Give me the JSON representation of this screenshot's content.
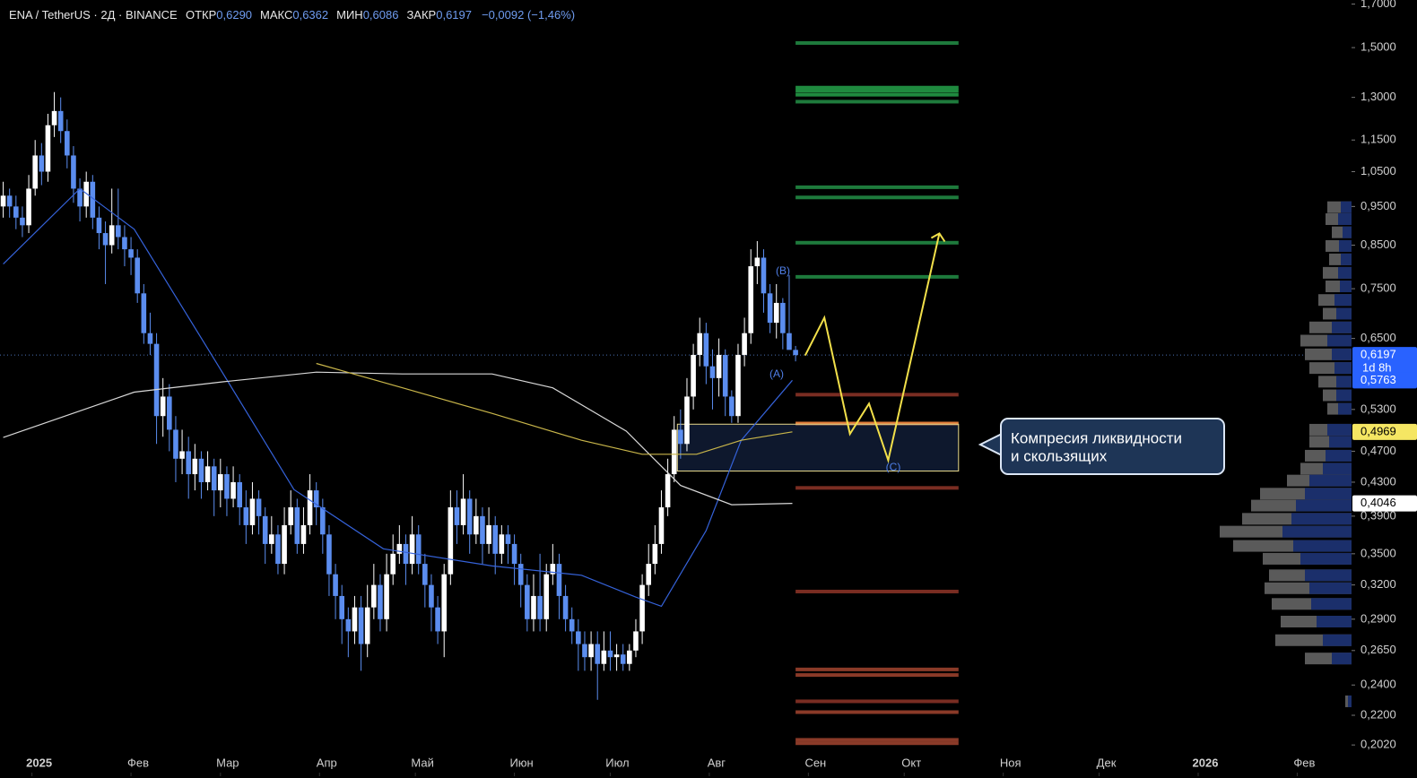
{
  "header": {
    "symbol": "ENA / TetherUS · 2Д · BINANCE",
    "ohlc": [
      {
        "label": "ОТКР",
        "value": "0,6290"
      },
      {
        "label": "МАКС",
        "value": "0,6362"
      },
      {
        "label": "МИН",
        "value": "0,6086"
      },
      {
        "label": "ЗАКР",
        "value": "0,6197"
      }
    ],
    "change": "−0,0092 (−1,46%)"
  },
  "chart_data": {
    "type": "candlestick",
    "log_scale": true,
    "up_color": "#ffffff",
    "down_color": "#5b8def",
    "xlim": [
      -10,
      413
    ],
    "ylim": [
      0.2,
      1.72
    ],
    "xticks": [
      {
        "value": 0,
        "label": "2025"
      },
      {
        "value": 31,
        "label": "Фев"
      },
      {
        "value": 59,
        "label": "Мар"
      },
      {
        "value": 90,
        "label": "Апр"
      },
      {
        "value": 120,
        "label": "Май"
      },
      {
        "value": 151,
        "label": "Июн"
      },
      {
        "value": 181,
        "label": "Июл"
      },
      {
        "value": 212,
        "label": "Авг"
      },
      {
        "value": 243,
        "label": "Сен"
      },
      {
        "value": 273,
        "label": "Окт"
      },
      {
        "value": 304,
        "label": "Ноя"
      },
      {
        "value": 334,
        "label": "Дек"
      },
      {
        "value": 365,
        "label": "2026"
      },
      {
        "value": 396,
        "label": "Фев"
      }
    ],
    "yticks": [
      {
        "value": 1.7,
        "label": "1,7000"
      },
      {
        "value": 1.5,
        "label": "1,5000"
      },
      {
        "value": 1.3,
        "label": "1,3000"
      },
      {
        "value": 1.15,
        "label": "1,1500"
      },
      {
        "value": 1.05,
        "label": "1,0500"
      },
      {
        "value": 0.95,
        "label": "0,9500"
      },
      {
        "value": 0.85,
        "label": "0,8500"
      },
      {
        "value": 0.75,
        "label": "0,7500"
      },
      {
        "value": 0.65,
        "label": "0,6500"
      },
      {
        "value": 0.53,
        "label": "0,5300"
      },
      {
        "value": 0.47,
        "label": "0,4700"
      },
      {
        "value": 0.43,
        "label": "0,4300"
      },
      {
        "value": 0.39,
        "label": "0,3900"
      },
      {
        "value": 0.35,
        "label": "0,3500"
      },
      {
        "value": 0.32,
        "label": "0,3200"
      },
      {
        "value": 0.29,
        "label": "0,2900"
      },
      {
        "value": 0.265,
        "label": "0,2650"
      },
      {
        "value": 0.24,
        "label": "0,2400"
      },
      {
        "value": 0.22,
        "label": "0,2200"
      },
      {
        "value": 0.202,
        "label": "0,2020"
      }
    ],
    "candles": [
      [
        0.95,
        1.02,
        0.92,
        0.98
      ],
      [
        0.98,
        1.0,
        0.92,
        0.95
      ],
      [
        0.95,
        0.98,
        0.89,
        0.92
      ],
      [
        0.92,
        0.95,
        0.87,
        0.9
      ],
      [
        0.9,
        1.04,
        0.88,
        1.0
      ],
      [
        1.0,
        1.15,
        0.98,
        1.1
      ],
      [
        1.1,
        1.14,
        1.01,
        1.05
      ],
      [
        1.05,
        1.24,
        1.02,
        1.2
      ],
      [
        1.2,
        1.32,
        1.16,
        1.25
      ],
      [
        1.25,
        1.3,
        1.14,
        1.18
      ],
      [
        1.18,
        1.22,
        1.06,
        1.1
      ],
      [
        1.1,
        1.13,
        0.96,
        1.0
      ],
      [
        1.0,
        1.03,
        0.91,
        0.95
      ],
      [
        0.95,
        1.05,
        0.92,
        1.02
      ],
      [
        1.02,
        1.04,
        0.89,
        0.92
      ],
      [
        0.92,
        0.95,
        0.84,
        0.88
      ],
      [
        0.88,
        0.91,
        0.76,
        0.85
      ],
      [
        0.85,
        1.0,
        0.83,
        0.9
      ],
      [
        0.9,
        1.0,
        0.84,
        0.87
      ],
      [
        0.87,
        0.9,
        0.8,
        0.84
      ],
      [
        0.84,
        0.87,
        0.78,
        0.82
      ],
      [
        0.82,
        0.84,
        0.72,
        0.74
      ],
      [
        0.74,
        0.76,
        0.64,
        0.66
      ],
      [
        0.66,
        0.7,
        0.62,
        0.64
      ],
      [
        0.64,
        0.66,
        0.48,
        0.52
      ],
      [
        0.52,
        0.58,
        0.49,
        0.55
      ],
      [
        0.55,
        0.57,
        0.47,
        0.5
      ],
      [
        0.5,
        0.52,
        0.43,
        0.46
      ],
      [
        0.46,
        0.5,
        0.44,
        0.47
      ],
      [
        0.47,
        0.49,
        0.41,
        0.44
      ],
      [
        0.44,
        0.48,
        0.42,
        0.46
      ],
      [
        0.46,
        0.47,
        0.41,
        0.43
      ],
      [
        0.43,
        0.47,
        0.42,
        0.45
      ],
      [
        0.45,
        0.46,
        0.39,
        0.42
      ],
      [
        0.42,
        0.46,
        0.4,
        0.44
      ],
      [
        0.44,
        0.45,
        0.39,
        0.41
      ],
      [
        0.41,
        0.45,
        0.4,
        0.43
      ],
      [
        0.43,
        0.44,
        0.38,
        0.4
      ],
      [
        0.4,
        0.42,
        0.36,
        0.38
      ],
      [
        0.38,
        0.43,
        0.37,
        0.41
      ],
      [
        0.41,
        0.42,
        0.37,
        0.39
      ],
      [
        0.39,
        0.4,
        0.34,
        0.36
      ],
      [
        0.36,
        0.39,
        0.35,
        0.37
      ],
      [
        0.37,
        0.38,
        0.33,
        0.34
      ],
      [
        0.34,
        0.4,
        0.33,
        0.38
      ],
      [
        0.38,
        0.42,
        0.37,
        0.4
      ],
      [
        0.4,
        0.41,
        0.35,
        0.36
      ],
      [
        0.36,
        0.4,
        0.35,
        0.38
      ],
      [
        0.38,
        0.44,
        0.37,
        0.42
      ],
      [
        0.42,
        0.43,
        0.38,
        0.4
      ],
      [
        0.4,
        0.41,
        0.35,
        0.37
      ],
      [
        0.37,
        0.38,
        0.31,
        0.33
      ],
      [
        0.33,
        0.34,
        0.29,
        0.31
      ],
      [
        0.31,
        0.32,
        0.27,
        0.29
      ],
      [
        0.29,
        0.3,
        0.26,
        0.28
      ],
      [
        0.28,
        0.31,
        0.27,
        0.3
      ],
      [
        0.3,
        0.31,
        0.25,
        0.27
      ],
      [
        0.27,
        0.32,
        0.26,
        0.3
      ],
      [
        0.3,
        0.34,
        0.29,
        0.32
      ],
      [
        0.32,
        0.33,
        0.28,
        0.29
      ],
      [
        0.29,
        0.35,
        0.28,
        0.33
      ],
      [
        0.33,
        0.37,
        0.32,
        0.35
      ],
      [
        0.35,
        0.38,
        0.34,
        0.36
      ],
      [
        0.36,
        0.37,
        0.32,
        0.34
      ],
      [
        0.34,
        0.39,
        0.33,
        0.37
      ],
      [
        0.37,
        0.38,
        0.33,
        0.34
      ],
      [
        0.34,
        0.35,
        0.3,
        0.32
      ],
      [
        0.32,
        0.33,
        0.28,
        0.3
      ],
      [
        0.3,
        0.31,
        0.27,
        0.28
      ],
      [
        0.28,
        0.34,
        0.26,
        0.33
      ],
      [
        0.33,
        0.42,
        0.32,
        0.4
      ],
      [
        0.4,
        0.42,
        0.36,
        0.38
      ],
      [
        0.38,
        0.44,
        0.37,
        0.41
      ],
      [
        0.41,
        0.42,
        0.35,
        0.37
      ],
      [
        0.37,
        0.41,
        0.36,
        0.39
      ],
      [
        0.39,
        0.4,
        0.34,
        0.36
      ],
      [
        0.36,
        0.4,
        0.35,
        0.38
      ],
      [
        0.38,
        0.39,
        0.33,
        0.35
      ],
      [
        0.35,
        0.38,
        0.34,
        0.37
      ],
      [
        0.37,
        0.38,
        0.34,
        0.36
      ],
      [
        0.36,
        0.37,
        0.32,
        0.34
      ],
      [
        0.34,
        0.35,
        0.3,
        0.32
      ],
      [
        0.32,
        0.33,
        0.28,
        0.29
      ],
      [
        0.29,
        0.33,
        0.28,
        0.31
      ],
      [
        0.31,
        0.35,
        0.28,
        0.29
      ],
      [
        0.29,
        0.34,
        0.28,
        0.33
      ],
      [
        0.33,
        0.36,
        0.32,
        0.34
      ],
      [
        0.34,
        0.35,
        0.29,
        0.31
      ],
      [
        0.31,
        0.32,
        0.28,
        0.29
      ],
      [
        0.29,
        0.3,
        0.27,
        0.28
      ],
      [
        0.28,
        0.29,
        0.25,
        0.27
      ],
      [
        0.27,
        0.28,
        0.25,
        0.26
      ],
      [
        0.26,
        0.28,
        0.25,
        0.27
      ],
      [
        0.27,
        0.28,
        0.23,
        0.255
      ],
      [
        0.255,
        0.28,
        0.25,
        0.265
      ],
      [
        0.265,
        0.28,
        0.25,
        0.26
      ],
      [
        0.26,
        0.27,
        0.25,
        0.262
      ],
      [
        0.262,
        0.27,
        0.25,
        0.255
      ],
      [
        0.255,
        0.27,
        0.25,
        0.265
      ],
      [
        0.265,
        0.29,
        0.26,
        0.28
      ],
      [
        0.28,
        0.33,
        0.27,
        0.32
      ],
      [
        0.32,
        0.36,
        0.31,
        0.34
      ],
      [
        0.34,
        0.38,
        0.33,
        0.36
      ],
      [
        0.36,
        0.42,
        0.35,
        0.4
      ],
      [
        0.4,
        0.46,
        0.39,
        0.44
      ],
      [
        0.44,
        0.52,
        0.43,
        0.5
      ],
      [
        0.5,
        0.53,
        0.46,
        0.48
      ],
      [
        0.48,
        0.58,
        0.47,
        0.55
      ],
      [
        0.55,
        0.64,
        0.53,
        0.62
      ],
      [
        0.62,
        0.69,
        0.6,
        0.66
      ],
      [
        0.66,
        0.68,
        0.57,
        0.6
      ],
      [
        0.6,
        0.63,
        0.53,
        0.58
      ],
      [
        0.58,
        0.65,
        0.55,
        0.62
      ],
      [
        0.62,
        0.63,
        0.52,
        0.55
      ],
      [
        0.55,
        0.56,
        0.51,
        0.52
      ],
      [
        0.52,
        0.64,
        0.51,
        0.62
      ],
      [
        0.62,
        0.69,
        0.6,
        0.66
      ],
      [
        0.66,
        0.84,
        0.64,
        0.8
      ],
      [
        0.8,
        0.86,
        0.76,
        0.82
      ],
      [
        0.82,
        0.84,
        0.7,
        0.74
      ],
      [
        0.74,
        0.76,
        0.66,
        0.68
      ],
      [
        0.68,
        0.76,
        0.65,
        0.72
      ],
      [
        0.72,
        0.73,
        0.63,
        0.66
      ],
      [
        0.66,
        0.78,
        0.64,
        0.629
      ],
      [
        0.629,
        0.6362,
        0.6086,
        0.6197
      ]
    ],
    "lines": [
      {
        "color": "#3562d9",
        "x": [
          -9,
          15,
          32,
          57,
          82,
          110,
          144,
          172,
          189,
          197,
          211,
          222,
          238
        ],
        "values": [
          0.805,
          1.0,
          0.89,
          0.613,
          0.421,
          0.355,
          0.338,
          0.329,
          0.309,
          0.301,
          0.374,
          0.485,
          0.5763
        ]
      },
      {
        "color": "#d8d8d8",
        "x": [
          -9,
          32,
          60,
          89,
          116,
          144,
          163,
          186,
          203,
          219,
          238
        ],
        "values": [
          0.489,
          0.557,
          0.574,
          0.59,
          0.587,
          0.587,
          0.564,
          0.498,
          0.426,
          0.403,
          0.4046
        ]
      },
      {
        "color": "#c9b64a",
        "x": [
          89,
          116,
          144,
          172,
          191,
          208,
          222,
          238
        ],
        "values": [
          0.605,
          0.564,
          0.524,
          0.485,
          0.466,
          0.466,
          0.485,
          0.4969
        ]
      },
      {
        "color": "#f2e04a",
        "x": [
          242,
          248,
          256,
          262,
          268,
          284
        ],
        "values": [
          0.619,
          0.69,
          0.494,
          0.539,
          0.458,
          0.879
        ]
      }
    ],
    "levels": {
      "x": [
        239,
        290
      ],
      "items": [
        {
          "value": 1.52,
          "color": "#1e7a3c"
        },
        {
          "value": 1.337,
          "color": "#1f8a3f"
        },
        {
          "value": 1.325,
          "color": "#1f8a3f"
        },
        {
          "value": 1.31,
          "color": "#1f8a3f"
        },
        {
          "value": 1.284,
          "color": "#1e7a3c"
        },
        {
          "value": 1.004,
          "color": "#1e7a3c"
        },
        {
          "value": 0.975,
          "color": "#1e7a3c"
        },
        {
          "value": 0.856,
          "color": "#1e7a3c"
        },
        {
          "value": 0.776,
          "color": "#1e7a3c"
        },
        {
          "value": 0.553,
          "color": "#7a2d22"
        },
        {
          "value": 0.509,
          "color": "#e07b39"
        },
        {
          "value": 0.423,
          "color": "#7a2d22"
        },
        {
          "value": 0.314,
          "color": "#7a2d22"
        },
        {
          "value": 0.251,
          "color": "#8a3a28"
        },
        {
          "value": 0.247,
          "color": "#8a3a28"
        },
        {
          "value": 0.229,
          "color": "#7a2d22"
        },
        {
          "value": 0.222,
          "color": "#8a3a28"
        },
        {
          "value": 0.205,
          "color": "#8a3a28"
        },
        {
          "value": 0.203,
          "color": "#8a3a28"
        }
      ]
    },
    "zone": {
      "x": [
        202,
        290
      ],
      "values": [
        0.444,
        0.508
      ]
    },
    "wave_labels": [
      "(A)",
      "(B)",
      "(C)"
    ],
    "annotation": [
      "Компресия ликвидности",
      "и скользящих"
    ],
    "price_markers": [
      {
        "value": 0.6197,
        "label": "0,6197",
        "sub": "1d 8h",
        "color": "#2962ff"
      },
      {
        "value": 0.5763,
        "label": "0,5763",
        "color": "#2962ff"
      },
      {
        "value": 0.4969,
        "label": "0,4969",
        "color": "#f5e663"
      },
      {
        "value": 0.4046,
        "label": "0,4046",
        "color": "#ffffff"
      }
    ],
    "volume_profile": {
      "prices": [
        0.948,
        0.916,
        0.882,
        0.848,
        0.816,
        0.785,
        0.755,
        0.726,
        0.698,
        0.671,
        0.646,
        0.621,
        0.597,
        0.574,
        0.552,
        0.531,
        0.5,
        0.483,
        0.464,
        0.447,
        0.432,
        0.416,
        0.402,
        0.387,
        0.373,
        0.358,
        0.345,
        0.329,
        0.317,
        0.303,
        0.288,
        0.273,
        0.259,
        0.229
      ],
      "total": [
        27,
        29,
        22,
        29,
        25,
        32,
        29,
        37,
        32,
        47,
        57,
        52,
        47,
        37,
        32,
        27,
        47,
        47,
        52,
        57,
        72,
        102,
        112,
        122,
        147,
        132,
        99,
        92,
        97,
        89,
        79,
        85,
        52,
        7
      ],
      "up": [
        12,
        15,
        10,
        14,
        12,
        15,
        13,
        19,
        17,
        22,
        27,
        22,
        19,
        17,
        17,
        15,
        27,
        25,
        29,
        32,
        47,
        52,
        62,
        67,
        77,
        65,
        57,
        52,
        47,
        45,
        39,
        32,
        22,
        4
      ]
    }
  }
}
